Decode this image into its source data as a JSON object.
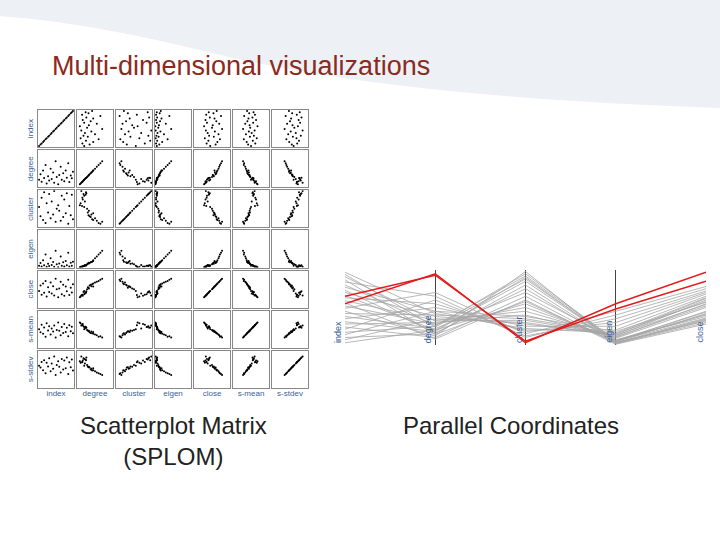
{
  "title": "Multi-dimensional visualizations",
  "chart_data": [
    {
      "type": "splom",
      "title": "Scatterplot Matrix (SPLOM)",
      "dimensions": [
        "index",
        "degree",
        "cluster",
        "eigen",
        "close",
        "s-mean",
        "s-stdev"
      ],
      "rows": [
        [
          0.03,
          0.2,
          0.55,
          0.05,
          0.45,
          0.5,
          0.6
        ],
        [
          0.07,
          0.35,
          0.3,
          0.12,
          0.6,
          0.42,
          0.55
        ],
        [
          0.1,
          0.15,
          0.8,
          0.03,
          0.35,
          0.62,
          0.7
        ],
        [
          0.14,
          0.45,
          0.2,
          0.2,
          0.65,
          0.38,
          0.48
        ],
        [
          0.17,
          0.25,
          0.95,
          0.06,
          0.4,
          0.55,
          0.75
        ],
        [
          0.21,
          0.6,
          0.12,
          0.35,
          0.72,
          0.3,
          0.4
        ],
        [
          0.24,
          0.1,
          0.65,
          0.02,
          0.3,
          0.66,
          0.68
        ],
        [
          0.28,
          0.3,
          0.4,
          0.1,
          0.55,
          0.47,
          0.58
        ],
        [
          0.31,
          0.18,
          0.9,
          0.04,
          0.42,
          0.58,
          0.8
        ],
        [
          0.35,
          0.5,
          0.25,
          0.25,
          0.68,
          0.36,
          0.45
        ],
        [
          0.38,
          0.22,
          0.7,
          0.07,
          0.38,
          0.52,
          0.66
        ],
        [
          0.42,
          0.4,
          0.35,
          0.15,
          0.58,
          0.44,
          0.52
        ],
        [
          0.45,
          0.12,
          0.98,
          0.02,
          0.33,
          0.6,
          0.85
        ],
        [
          0.49,
          0.7,
          0.15,
          0.45,
          0.78,
          0.28,
          0.35
        ],
        [
          0.52,
          0.28,
          0.5,
          0.09,
          0.5,
          0.48,
          0.62
        ],
        [
          0.56,
          0.08,
          0.6,
          0.01,
          0.28,
          0.68,
          0.72
        ],
        [
          0.59,
          0.33,
          0.45,
          0.11,
          0.52,
          0.46,
          0.57
        ],
        [
          0.63,
          0.55,
          0.18,
          0.3,
          0.7,
          0.34,
          0.42
        ],
        [
          0.66,
          0.2,
          0.85,
          0.05,
          0.36,
          0.56,
          0.78
        ],
        [
          0.7,
          0.38,
          0.28,
          0.14,
          0.62,
          0.4,
          0.5
        ],
        [
          0.73,
          0.16,
          0.75,
          0.03,
          0.32,
          0.64,
          0.74
        ],
        [
          0.77,
          0.45,
          0.38,
          0.18,
          0.57,
          0.43,
          0.53
        ],
        [
          0.8,
          0.26,
          0.92,
          0.06,
          0.44,
          0.54,
          0.82
        ],
        [
          0.84,
          0.65,
          0.1,
          0.4,
          0.75,
          0.31,
          0.38
        ],
        [
          0.87,
          0.14,
          0.58,
          0.03,
          0.34,
          0.61,
          0.69
        ],
        [
          0.91,
          0.32,
          0.33,
          0.13,
          0.54,
          0.45,
          0.56
        ],
        [
          0.94,
          0.24,
          0.88,
          0.05,
          0.41,
          0.57,
          0.77
        ],
        [
          0.97,
          0.42,
          0.22,
          0.16,
          0.63,
          0.39,
          0.47
        ]
      ],
      "color": "#000000",
      "marker": "dot",
      "xlim": [
        0,
        1
      ],
      "ylim": [
        0,
        1
      ],
      "grid": false,
      "tick_labels": false
    },
    {
      "type": "parallel",
      "title": "Parallel Coordinates",
      "categories": [
        "index",
        "degree",
        "cluster",
        "eigen",
        "close"
      ],
      "series": [
        {
          "color": "#a6a6a6",
          "values": [
            [
              0.03,
              0.2,
              0.55,
              0.05,
              0.45
            ],
            [
              0.07,
              0.35,
              0.3,
              0.12,
              0.6
            ],
            [
              0.1,
              0.15,
              0.8,
              0.03,
              0.35
            ],
            [
              0.14,
              0.45,
              0.2,
              0.2,
              0.65
            ],
            [
              0.17,
              0.25,
              0.95,
              0.06,
              0.4
            ],
            [
              0.21,
              0.6,
              0.12,
              0.35,
              0.72
            ],
            [
              0.24,
              0.1,
              0.65,
              0.02,
              0.3
            ],
            [
              0.28,
              0.3,
              0.4,
              0.1,
              0.55
            ],
            [
              0.31,
              0.18,
              0.9,
              0.04,
              0.42
            ],
            [
              0.35,
              0.5,
              0.25,
              0.25,
              0.68
            ],
            [
              0.38,
              0.22,
              0.7,
              0.07,
              0.38
            ],
            [
              0.42,
              0.4,
              0.35,
              0.15,
              0.58
            ],
            [
              0.45,
              0.12,
              0.98,
              0.02,
              0.33
            ],
            [
              0.49,
              0.7,
              0.15,
              0.45,
              0.78
            ],
            [
              0.52,
              0.28,
              0.5,
              0.09,
              0.5
            ],
            [
              0.56,
              0.08,
              0.6,
              0.01,
              0.28
            ],
            [
              0.59,
              0.33,
              0.45,
              0.11,
              0.52
            ],
            [
              0.63,
              0.55,
              0.18,
              0.3,
              0.7
            ],
            [
              0.66,
              0.2,
              0.85,
              0.05,
              0.36
            ],
            [
              0.7,
              0.38,
              0.28,
              0.14,
              0.62
            ],
            [
              0.73,
              0.16,
              0.75,
              0.03,
              0.32
            ],
            [
              0.77,
              0.45,
              0.38,
              0.18,
              0.57
            ],
            [
              0.8,
              0.26,
              0.92,
              0.06,
              0.44
            ],
            [
              0.84,
              0.65,
              0.1,
              0.4,
              0.75
            ],
            [
              0.87,
              0.14,
              0.58,
              0.03,
              0.34
            ],
            [
              0.91,
              0.32,
              0.33,
              0.13,
              0.54
            ],
            [
              0.94,
              0.24,
              0.88,
              0.05,
              0.41
            ],
            [
              0.97,
              0.42,
              0.22,
              0.16,
              0.63
            ]
          ]
        },
        {
          "color": "#e31a1c",
          "values": [
            [
              0.55,
              0.95,
              0.03,
              0.55,
              0.97
            ],
            [
              0.65,
              0.93,
              0.05,
              0.48,
              0.85
            ]
          ]
        }
      ],
      "ylim": [
        0,
        1
      ],
      "grid": true,
      "tick_labels": false
    }
  ]
}
